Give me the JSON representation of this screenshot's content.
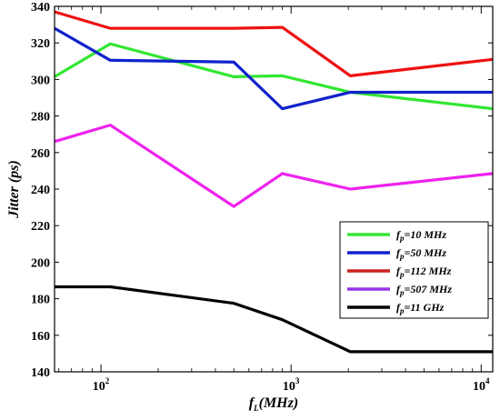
{
  "chart_data": {
    "type": "line",
    "x_scale": "log",
    "xlim": [
      57,
      11500
    ],
    "ylim": [
      140,
      340
    ],
    "grid": false,
    "legend_position": "bottom-right",
    "xlabel": {
      "base": "f",
      "sub": "L",
      "rest": "(MHz)"
    },
    "ylabel": "Jitter (ps)",
    "x_ticks": [
      {
        "value": 100,
        "base": "10",
        "exp": "2"
      },
      {
        "value": 1000,
        "base": "10",
        "exp": "3"
      },
      {
        "value": 10000,
        "base": "10",
        "exp": "4"
      }
    ],
    "y_ticks": [
      140,
      160,
      180,
      200,
      220,
      240,
      260,
      280,
      300,
      320,
      340
    ],
    "series": [
      {
        "label": {
          "base": "f",
          "sub": "p",
          "rest": "=10 MHz"
        },
        "color": "#33e633",
        "legend_color": "#33e633",
        "x": [
          57,
          112,
          500,
          900,
          2050,
          11500
        ],
        "y": [
          301.5,
          319.5,
          301.5,
          302,
          293,
          284
        ]
      },
      {
        "label": {
          "base": "f",
          "sub": "p",
          "rest": "=50 MHz"
        },
        "color": "#1122cc",
        "legend_color": "#1122cc",
        "x": [
          57,
          112,
          500,
          900,
          2050,
          11500
        ],
        "y": [
          328,
          310.5,
          309.5,
          284,
          293,
          293
        ]
      },
      {
        "label": {
          "base": "f",
          "sub": "p",
          "rest": "=112 MHz"
        },
        "color": "#ee1111",
        "legend_color": "#cc2222",
        "x": [
          57,
          112,
          500,
          900,
          2050,
          11500
        ],
        "y": [
          337,
          328,
          328,
          328.5,
          302,
          311
        ]
      },
      {
        "label": {
          "base": "f",
          "sub": "p",
          "rest": "=507 MHz"
        },
        "color": "#ee22ee",
        "legend_color": "#9933ee",
        "x": [
          57,
          112,
          500,
          900,
          2050,
          11500
        ],
        "y": [
          266,
          275,
          230.5,
          248.5,
          240,
          248.5
        ]
      },
      {
        "label": {
          "base": "f",
          "sub": "p",
          "rest": "=11 GHz"
        },
        "color": "#000000",
        "legend_color": "#000000",
        "x": [
          57,
          112,
          500,
          900,
          2050,
          11500
        ],
        "y": [
          186.5,
          186.5,
          177.5,
          168.5,
          151,
          151
        ]
      }
    ]
  }
}
